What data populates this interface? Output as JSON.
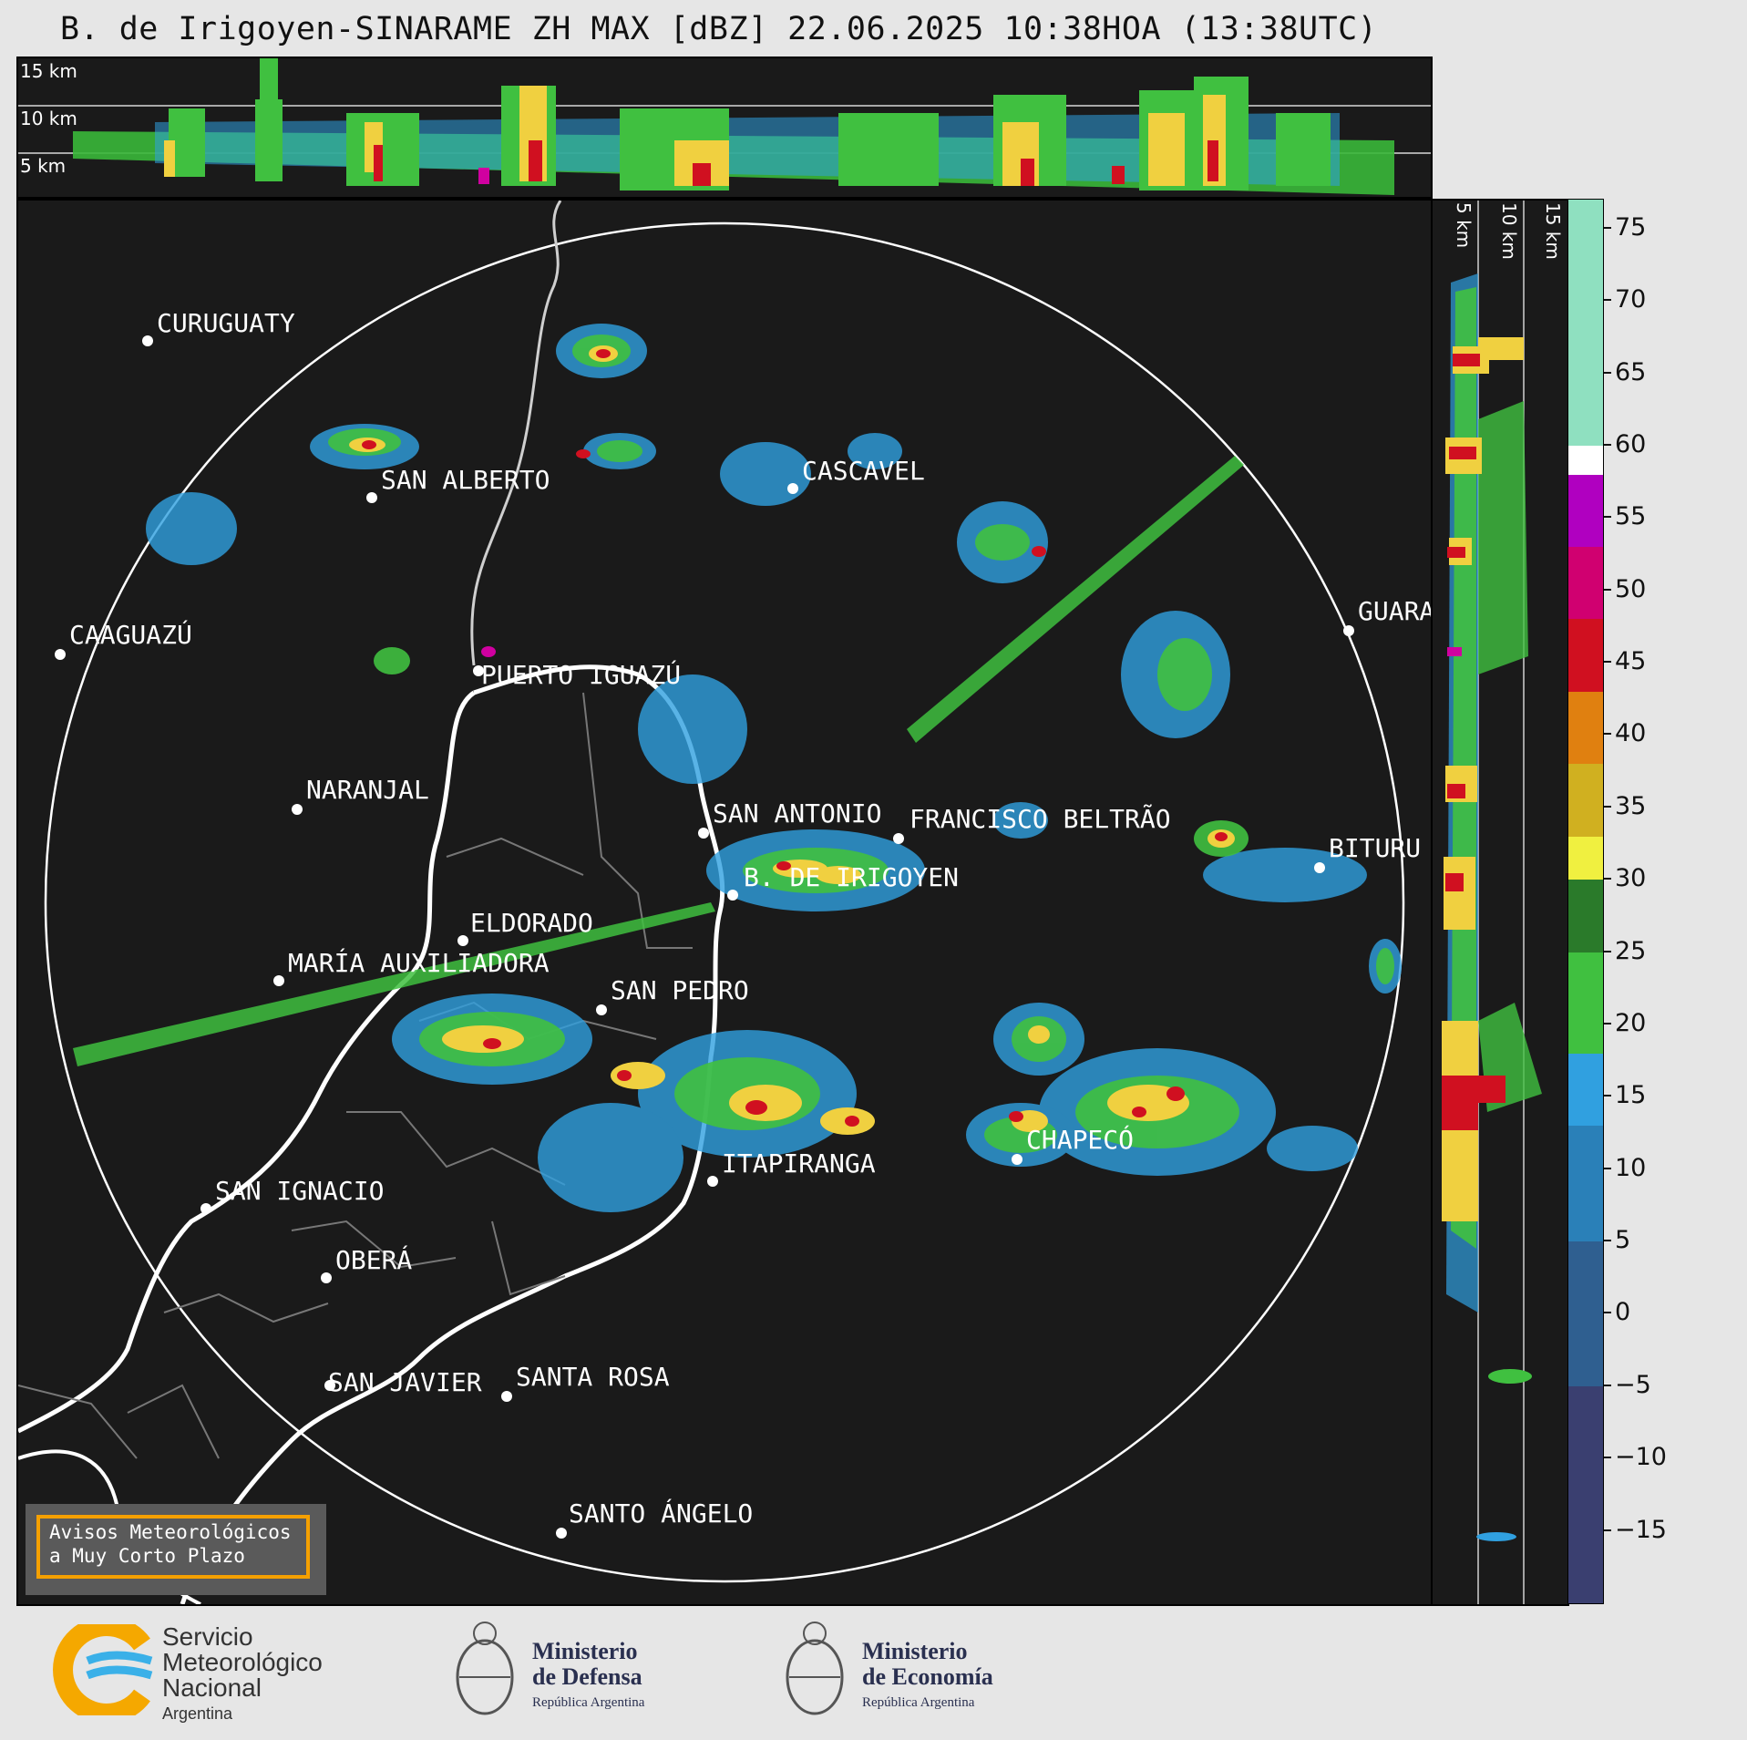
{
  "title": "B. de Irigoyen-SINARAME ZH MAX [dBZ] 22.06.2025 10:38HOA (13:38UTC)",
  "top_panel": {
    "altitude_labels": [
      "15 km",
      "10 km",
      "5 km"
    ]
  },
  "side_panel": {
    "altitude_labels": [
      "5 km",
      "10 km",
      "15 km"
    ]
  },
  "cities": [
    {
      "name": "CURUGUATY"
    },
    {
      "name": "SAN ALBERTO"
    },
    {
      "name": "CASCAVEL"
    },
    {
      "name": "CAAGUAZÚ"
    },
    {
      "name": "GUARA"
    },
    {
      "name": "PUERTO IGUAZÚ"
    },
    {
      "name": "NARANJAL"
    },
    {
      "name": "SAN ANTONIO"
    },
    {
      "name": "FRANCISCO BELTRÃO"
    },
    {
      "name": "B. DE IRIGOYEN"
    },
    {
      "name": "BITURU"
    },
    {
      "name": "ELDORADO"
    },
    {
      "name": "MARÍA AUXILIADORA"
    },
    {
      "name": "SAN PEDRO"
    },
    {
      "name": "CHAPECÓ"
    },
    {
      "name": "ITAPIRANGA"
    },
    {
      "name": "SAN IGNACIO"
    },
    {
      "name": "OBERÁ"
    },
    {
      "name": "SAN JAVIER"
    },
    {
      "name": "SANTA ROSA"
    },
    {
      "name": "SANTO ÁNGELO"
    }
  ],
  "colorbar": {
    "min": -20,
    "max": 77,
    "ticks": [
      75,
      70,
      65,
      60,
      55,
      50,
      45,
      40,
      35,
      30,
      25,
      20,
      15,
      10,
      5,
      0,
      -5,
      -10,
      -15
    ],
    "tick_labels": [
      "75",
      "70",
      "65",
      "60",
      "55",
      "50",
      "45",
      "40",
      "35",
      "30",
      "25",
      "20",
      "15",
      "10",
      "5",
      "0",
      "−5",
      "−10",
      "−15"
    ],
    "segments": [
      {
        "from": 60,
        "to": 77,
        "color": "#8fe0c0"
      },
      {
        "from": 58,
        "to": 60,
        "color": "#ffffff"
      },
      {
        "from": 53,
        "to": 58,
        "color": "#b000c0"
      },
      {
        "from": 48,
        "to": 53,
        "color": "#d00070"
      },
      {
        "from": 43,
        "to": 48,
        "color": "#d01020"
      },
      {
        "from": 38,
        "to": 43,
        "color": "#e08010"
      },
      {
        "from": 33,
        "to": 38,
        "color": "#d0b020"
      },
      {
        "from": 30,
        "to": 33,
        "color": "#f0f040"
      },
      {
        "from": 25,
        "to": 30,
        "color": "#2a7a2a"
      },
      {
        "from": 18,
        "to": 25,
        "color": "#40c040"
      },
      {
        "from": 13,
        "to": 18,
        "color": "#30a0e0"
      },
      {
        "from": 5,
        "to": 13,
        "color": "#2a80b8"
      },
      {
        "from": -5,
        "to": 5,
        "color": "#2f5f90"
      },
      {
        "from": -20,
        "to": -5,
        "color": "#3a3f70"
      }
    ]
  },
  "notice": {
    "line1": "Avisos Meteorológicos",
    "line2": "a Muy Corto Plazo"
  },
  "logos": {
    "smn": {
      "line1": "Servicio",
      "line2": "Meteorológico",
      "line3": "Nacional",
      "line4": "Argentina"
    },
    "defensa": {
      "line1": "Ministerio",
      "line2": "de Defensa",
      "line3": "República Argentina"
    },
    "economia": {
      "line1": "Ministerio",
      "line2": "de Economía",
      "line3": "República Argentina"
    }
  }
}
